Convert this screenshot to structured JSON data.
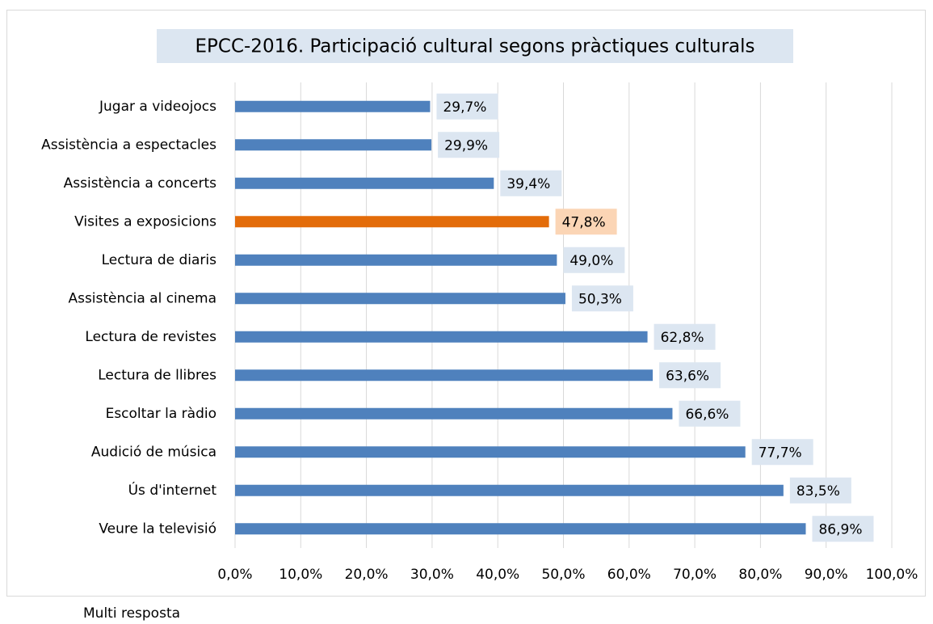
{
  "chart_data": {
    "type": "bar",
    "orientation": "horizontal",
    "title": "EPCC-2016. Participació cultural segons pràctiques culturals",
    "categories": [
      "Jugar a videojocs",
      "Assistència a espectacles",
      "Assistència a concerts",
      "Visites a exposicions",
      "Lectura de diaris",
      "Assistència al cinema",
      "Lectura de revistes",
      "Lectura de llibres",
      "Escoltar la ràdio",
      "Audició de música",
      "Ús d'internet",
      "Veure la televisió"
    ],
    "values": [
      29.7,
      29.9,
      39.4,
      47.8,
      49.0,
      50.3,
      62.8,
      63.6,
      66.6,
      77.7,
      83.5,
      86.9
    ],
    "value_labels": [
      "29,7%",
      "29,9%",
      "39,4%",
      "47,8%",
      "49,0%",
      "50,3%",
      "62,8%",
      "63,6%",
      "66,6%",
      "77,7%",
      "83,5%",
      "86,9%"
    ],
    "colors": [
      "#4f81bd",
      "#4f81bd",
      "#4f81bd",
      "#e36c0a",
      "#4f81bd",
      "#4f81bd",
      "#4f81bd",
      "#4f81bd",
      "#4f81bd",
      "#4f81bd",
      "#4f81bd",
      "#4f81bd"
    ],
    "label_colors": [
      "#dce6f1",
      "#dce6f1",
      "#dce6f1",
      "#fbd5b5",
      "#dce6f1",
      "#dce6f1",
      "#dce6f1",
      "#dce6f1",
      "#dce6f1",
      "#dce6f1",
      "#dce6f1",
      "#dce6f1"
    ],
    "xlim": [
      0,
      100
    ],
    "xticks": [
      {
        "value": 0,
        "label": "0,0%"
      },
      {
        "value": 10,
        "label": "10,0%"
      },
      {
        "value": 20,
        "label": "20,0%"
      },
      {
        "value": 30,
        "label": "30,0%"
      },
      {
        "value": 40,
        "label": "40,0%"
      },
      {
        "value": 50,
        "label": "50,0%"
      },
      {
        "value": 60,
        "label": "60,0%"
      },
      {
        "value": 70,
        "label": "70,0%"
      },
      {
        "value": 80,
        "label": "80,0%"
      },
      {
        "value": 90,
        "label": "90,0%"
      },
      {
        "value": 100,
        "label": "100,0%"
      }
    ],
    "grid": true,
    "note": "Multi resposta"
  }
}
